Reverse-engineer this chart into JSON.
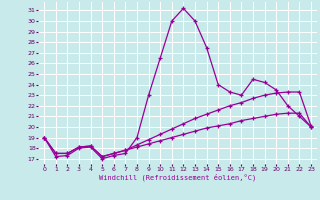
{
  "xlabel": "Windchill (Refroidissement éolien,°C)",
  "background_color": "#c8eaea",
  "grid_color": "#ffffff",
  "line_color": "#990099",
  "tick_color": "#660066",
  "x_ticks": [
    0,
    1,
    2,
    3,
    4,
    5,
    6,
    7,
    8,
    9,
    10,
    11,
    12,
    13,
    14,
    15,
    16,
    17,
    18,
    19,
    20,
    21,
    22,
    23
  ],
  "y_ticks": [
    17,
    18,
    19,
    20,
    21,
    22,
    23,
    24,
    25,
    26,
    27,
    28,
    29,
    30,
    31
  ],
  "ylim": [
    16.5,
    31.8
  ],
  "xlim": [
    -0.5,
    23.5
  ],
  "line1": [
    19.0,
    17.2,
    17.3,
    18.0,
    18.1,
    17.0,
    17.3,
    17.5,
    19.0,
    23.0,
    26.5,
    30.0,
    31.2,
    30.0,
    27.5,
    24.0,
    23.3,
    23.0,
    24.5,
    24.2,
    23.5,
    22.0,
    21.0,
    20.0
  ],
  "line2": [
    19.0,
    17.5,
    17.5,
    18.1,
    18.2,
    17.2,
    17.5,
    17.8,
    18.3,
    18.8,
    19.3,
    19.8,
    20.3,
    20.8,
    21.2,
    21.6,
    22.0,
    22.3,
    22.7,
    23.0,
    23.2,
    23.3,
    23.3,
    20.1
  ],
  "line3": [
    19.0,
    17.5,
    17.5,
    18.1,
    18.2,
    17.2,
    17.5,
    17.8,
    18.1,
    18.4,
    18.7,
    19.0,
    19.3,
    19.6,
    19.9,
    20.1,
    20.3,
    20.6,
    20.8,
    21.0,
    21.2,
    21.3,
    21.3,
    20.0
  ]
}
